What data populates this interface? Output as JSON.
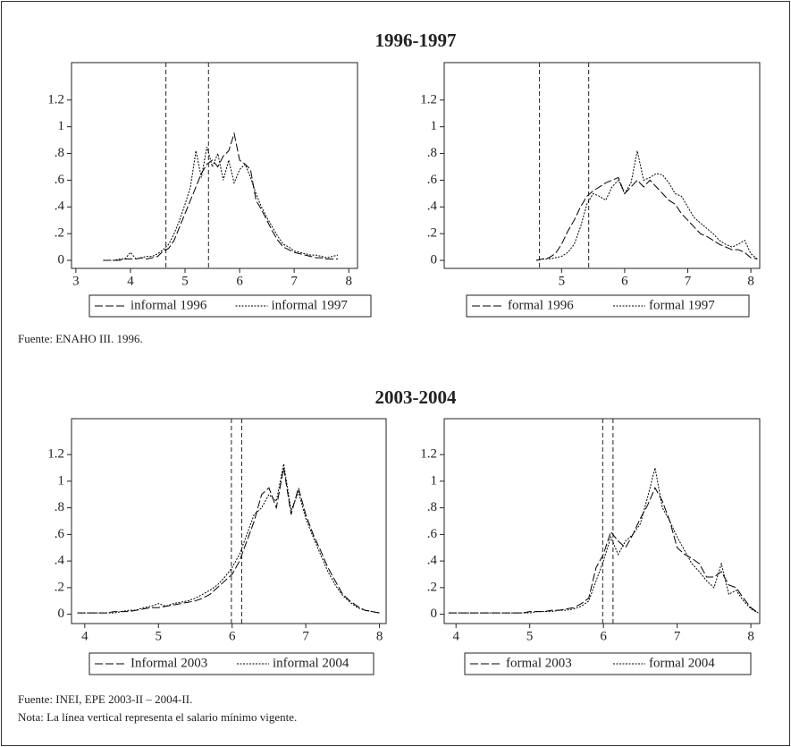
{
  "panels": [
    {
      "title": "1996-1997",
      "source": "Fuente: ENAHO III. 1996."
    },
    {
      "title": "2003-2004",
      "source": "Fuente: INEI, EPE 2003-II – 2004-II.",
      "note": "Nota: La línea vertical representa el salario mínimo vigente."
    }
  ],
  "chart_data": [
    {
      "type": "line",
      "x": [
        3.5,
        3.6,
        3.7,
        3.8,
        3.9,
        4.0,
        4.1,
        4.2,
        4.3,
        4.4,
        4.5,
        4.6,
        4.7,
        4.8,
        4.9,
        5.0,
        5.1,
        5.2,
        5.3,
        5.4,
        5.5,
        5.6,
        5.7,
        5.8,
        5.9,
        6.0,
        6.1,
        6.2,
        6.3,
        6.4,
        6.5,
        6.6,
        6.7,
        6.8,
        6.9,
        7.0,
        7.1,
        7.2,
        7.3,
        7.4,
        7.5,
        7.6,
        7.7,
        7.8
      ],
      "series": [
        {
          "name": "informal 1996",
          "color": "#000000",
          "dash": "9,3",
          "values": [
            0,
            0,
            0,
            0,
            0.01,
            0.01,
            0.01,
            0.02,
            0.01,
            0.02,
            0.03,
            0.07,
            0.09,
            0.15,
            0.25,
            0.35,
            0.45,
            0.55,
            0.65,
            0.72,
            0.75,
            0.7,
            0.78,
            0.82,
            0.95,
            0.75,
            0.72,
            0.68,
            0.45,
            0.38,
            0.3,
            0.22,
            0.15,
            0.1,
            0.08,
            0.06,
            0.05,
            0.04,
            0.03,
            0.02,
            0.02,
            0.01,
            0.01,
            0.01
          ]
        },
        {
          "name": "informal 1997",
          "color": "#000000",
          "dash": "2,1.5",
          "values": [
            0,
            0,
            0,
            0.01,
            0.01,
            0.06,
            0.01,
            0.02,
            0.03,
            0.03,
            0.05,
            0.08,
            0.12,
            0.2,
            0.3,
            0.42,
            0.55,
            0.82,
            0.62,
            0.85,
            0.7,
            0.8,
            0.6,
            0.75,
            0.58,
            0.68,
            0.72,
            0.62,
            0.5,
            0.4,
            0.32,
            0.25,
            0.18,
            0.12,
            0.1,
            0.07,
            0.06,
            0.05,
            0.04,
            0.04,
            0.03,
            0.02,
            0.03,
            0.04
          ]
        }
      ],
      "vlines": [
        4.65,
        5.43
      ],
      "xlim": [
        2.92,
        8.16
      ],
      "xticks": [
        3,
        4,
        5,
        6,
        7,
        8
      ],
      "ylim": [
        -0.06,
        1.48
      ],
      "yticks": [
        0,
        {
          "value": 0.2,
          "label": ".2"
        },
        {
          "value": 0.4,
          "label": ".4"
        },
        {
          "value": 0.6,
          "label": ".6"
        },
        {
          "value": 0.8,
          "label": ".8"
        },
        1,
        1.2
      ]
    },
    {
      "type": "line",
      "x": [
        4.6,
        4.7,
        4.8,
        4.9,
        5.0,
        5.1,
        5.2,
        5.3,
        5.4,
        5.5,
        5.6,
        5.7,
        5.8,
        5.9,
        6.0,
        6.1,
        6.2,
        6.3,
        6.4,
        6.5,
        6.6,
        6.7,
        6.8,
        6.9,
        7.0,
        7.1,
        7.2,
        7.3,
        7.4,
        7.5,
        7.6,
        7.7,
        7.8,
        7.9,
        8.0,
        8.1
      ],
      "series": [
        {
          "name": "formal 1996",
          "color": "#000000",
          "dash": "9,3",
          "values": [
            0,
            0.01,
            0.02,
            0.05,
            0.12,
            0.22,
            0.3,
            0.4,
            0.48,
            0.52,
            0.55,
            0.58,
            0.6,
            0.62,
            0.5,
            0.55,
            0.6,
            0.55,
            0.6,
            0.55,
            0.5,
            0.45,
            0.42,
            0.35,
            0.3,
            0.25,
            0.2,
            0.18,
            0.15,
            0.12,
            0.1,
            0.08,
            0.08,
            0.06,
            0.02,
            0.01
          ]
        },
        {
          "name": "formal 1997",
          "color": "#000000",
          "dash": "2,1.5",
          "values": [
            0,
            0.01,
            0.01,
            0.02,
            0.03,
            0.06,
            0.12,
            0.25,
            0.42,
            0.5,
            0.48,
            0.45,
            0.55,
            0.6,
            0.5,
            0.58,
            0.82,
            0.6,
            0.62,
            0.65,
            0.64,
            0.58,
            0.5,
            0.48,
            0.4,
            0.32,
            0.28,
            0.24,
            0.2,
            0.15,
            0.12,
            0.1,
            0.12,
            0.15,
            0.05,
            0.01
          ]
        }
      ],
      "vlines": [
        4.65,
        5.43
      ],
      "xlim": [
        3.14,
        8.14
      ],
      "xticks": [
        5,
        6,
        7,
        8
      ],
      "ylim": [
        -0.06,
        1.48
      ],
      "yticks": [
        0,
        {
          "value": 0.2,
          "label": ".2"
        },
        {
          "value": 0.4,
          "label": ".4"
        },
        {
          "value": 0.6,
          "label": ".6"
        },
        {
          "value": 0.8,
          "label": ".8"
        },
        1,
        1.2
      ]
    },
    {
      "type": "line",
      "x": [
        3.9,
        4.0,
        4.1,
        4.2,
        4.3,
        4.4,
        4.5,
        4.6,
        4.7,
        4.8,
        4.9,
        5.0,
        5.1,
        5.2,
        5.3,
        5.4,
        5.5,
        5.6,
        5.7,
        5.8,
        5.9,
        6.0,
        6.1,
        6.2,
        6.3,
        6.4,
        6.5,
        6.6,
        6.7,
        6.8,
        6.9,
        7.0,
        7.1,
        7.2,
        7.3,
        7.4,
        7.5,
        7.6,
        7.7,
        7.8,
        7.9,
        8.0
      ],
      "series": [
        {
          "name": "Informal 2003",
          "color": "#000000",
          "dash": "9,3",
          "values": [
            0.01,
            0.01,
            0.01,
            0.01,
            0.01,
            0.02,
            0.02,
            0.02,
            0.03,
            0.04,
            0.05,
            0.05,
            0.06,
            0.07,
            0.08,
            0.09,
            0.1,
            0.12,
            0.15,
            0.2,
            0.25,
            0.3,
            0.4,
            0.55,
            0.7,
            0.9,
            0.95,
            0.8,
            1.1,
            0.75,
            0.95,
            0.75,
            0.6,
            0.48,
            0.35,
            0.25,
            0.15,
            0.1,
            0.06,
            0.03,
            0.02,
            0.01
          ]
        },
        {
          "name": "informal 2004",
          "color": "#000000",
          "dash": "2,1.5",
          "values": [
            0.01,
            0.01,
            0.01,
            0.01,
            0.01,
            0.01,
            0.02,
            0.03,
            0.03,
            0.05,
            0.06,
            0.08,
            0.06,
            0.08,
            0.09,
            0.1,
            0.12,
            0.15,
            0.18,
            0.22,
            0.28,
            0.35,
            0.45,
            0.6,
            0.75,
            0.8,
            0.9,
            0.85,
            1.13,
            0.78,
            0.92,
            0.72,
            0.58,
            0.45,
            0.32,
            0.22,
            0.14,
            0.09,
            0.05,
            0.03,
            0.02,
            0.01
          ]
        }
      ],
      "vlines": [
        5.99,
        6.13
      ],
      "xlim": [
        3.82,
        8.09
      ],
      "xticks": [
        4,
        5,
        6,
        7,
        8
      ],
      "ylim": [
        -0.07,
        1.47
      ],
      "yticks": [
        0,
        {
          "value": 0.2,
          "label": ".2"
        },
        {
          "value": 0.4,
          "label": ".4"
        },
        {
          "value": 0.6,
          "label": ".6"
        },
        {
          "value": 0.8,
          "label": ".8"
        },
        1,
        1.2
      ]
    },
    {
      "type": "line",
      "x": [
        3.9,
        4.0,
        4.1,
        4.2,
        4.3,
        4.4,
        4.5,
        4.6,
        4.7,
        4.8,
        4.9,
        5.0,
        5.1,
        5.2,
        5.3,
        5.4,
        5.5,
        5.6,
        5.7,
        5.8,
        5.9,
        6.0,
        6.1,
        6.2,
        6.3,
        6.4,
        6.5,
        6.6,
        6.7,
        6.8,
        6.9,
        7.0,
        7.1,
        7.2,
        7.3,
        7.4,
        7.5,
        7.6,
        7.7,
        7.8,
        7.9,
        8.0,
        8.1
      ],
      "series": [
        {
          "name": "formal 2003",
          "color": "#000000",
          "dash": "9,3",
          "values": [
            0.01,
            0.01,
            0.01,
            0.01,
            0.01,
            0.01,
            0.01,
            0.01,
            0.01,
            0.01,
            0.01,
            0.02,
            0.02,
            0.02,
            0.03,
            0.03,
            0.04,
            0.05,
            0.08,
            0.12,
            0.35,
            0.45,
            0.62,
            0.55,
            0.5,
            0.6,
            0.72,
            0.82,
            0.95,
            0.85,
            0.7,
            0.5,
            0.45,
            0.42,
            0.38,
            0.28,
            0.28,
            0.32,
            0.22,
            0.2,
            0.12,
            0.05,
            0.01
          ]
        },
        {
          "name": "formal 2004",
          "color": "#000000",
          "dash": "2,1.5",
          "values": [
            0.01,
            0.01,
            0.01,
            0.01,
            0.01,
            0.01,
            0.01,
            0.01,
            0.01,
            0.01,
            0.01,
            0.01,
            0.02,
            0.02,
            0.02,
            0.03,
            0.03,
            0.04,
            0.06,
            0.1,
            0.25,
            0.4,
            0.58,
            0.45,
            0.55,
            0.6,
            0.68,
            0.88,
            1.1,
            0.8,
            0.7,
            0.58,
            0.48,
            0.38,
            0.32,
            0.25,
            0.2,
            0.38,
            0.15,
            0.18,
            0.1,
            0.04,
            0.01
          ]
        }
      ],
      "vlines": [
        5.99,
        6.13
      ],
      "xlim": [
        3.84,
        8.12
      ],
      "xticks": [
        4,
        5,
        6,
        7,
        8
      ],
      "ylim": [
        -0.07,
        1.47
      ],
      "yticks": [
        0,
        {
          "value": 0.2,
          "label": ".2"
        },
        {
          "value": 0.4,
          "label": ".4"
        },
        {
          "value": 0.6,
          "label": ".6"
        },
        {
          "value": 0.8,
          "label": ".8"
        },
        1,
        1.2
      ]
    }
  ]
}
